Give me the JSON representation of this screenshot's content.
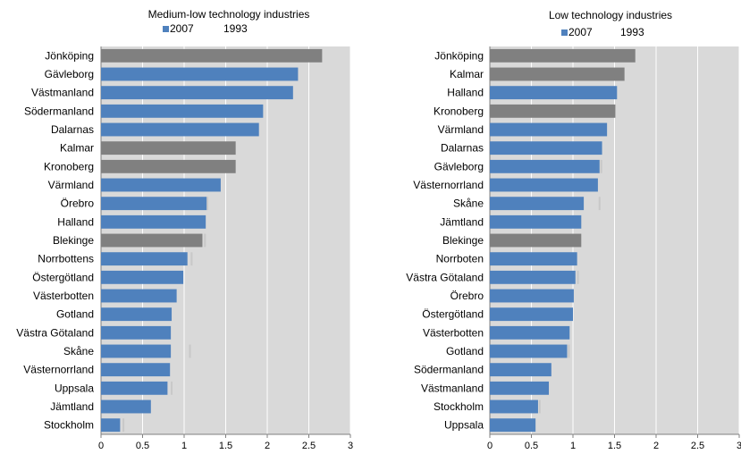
{
  "chart_data": [
    {
      "type": "bar",
      "orientation": "horizontal",
      "title": "Medium-low technology industries",
      "legend": [
        "2007",
        "1993"
      ],
      "legend_position": "top",
      "series_colors": {
        "2007": "#4f81bd",
        "highlight": "#808080",
        "1993": "#c8c8c8"
      },
      "categories": [
        "Jönköping",
        "Gävleborg",
        "Västmanland",
        "Södermanland",
        "Dalarnas",
        "Kalmar",
        "Kronoberg",
        "Värmland",
        "Örebro",
        "Halland",
        "Blekinge",
        "Norrbottens",
        "Östergötland",
        "Västerbotten",
        "Gotland",
        "Västra Götaland",
        "Skåne",
        "Västernorrland",
        "Uppsala",
        "Jämtland",
        "Stockholm"
      ],
      "highlighted": [
        "Jönköping",
        "Kalmar",
        "Kronoberg",
        "Blekinge"
      ],
      "series": [
        {
          "name": "2007",
          "values": [
            2.66,
            2.37,
            2.31,
            1.95,
            1.9,
            1.62,
            1.62,
            1.44,
            1.27,
            1.26,
            1.22,
            1.04,
            0.99,
            0.91,
            0.85,
            0.84,
            0.84,
            0.83,
            0.8,
            0.6,
            0.23
          ]
        },
        {
          "name": "1993",
          "values": [
            null,
            null,
            null,
            null,
            null,
            null,
            null,
            null,
            1.28,
            null,
            1.25,
            1.09,
            null,
            null,
            null,
            null,
            1.07,
            null,
            0.85,
            null,
            0.27
          ]
        }
      ],
      "xlim": [
        0,
        3
      ],
      "xticks": [
        "0",
        "0.5",
        "1",
        "1.5",
        "2",
        "2.5",
        "3"
      ],
      "grid": true
    },
    {
      "type": "bar",
      "orientation": "horizontal",
      "title": "Low technology industries",
      "legend": [
        "2007",
        "1993"
      ],
      "legend_position": "top",
      "series_colors": {
        "2007": "#4f81bd",
        "highlight": "#808080",
        "1993": "#c8c8c8"
      },
      "categories": [
        "Jönköping",
        "Kalmar",
        "Halland",
        "Kronoberg",
        "Värmland",
        "Dalarnas",
        "Gävleborg",
        "Västernorrland",
        "Skåne",
        "Jämtland",
        "Blekinge",
        "Norrboten",
        "Västra Götaland",
        "Örebro",
        "Östergötland",
        "Västerbotten",
        "Gotland",
        "Södermanland",
        "Västmanland",
        "Stockholm",
        "Uppsala"
      ],
      "highlighted": [
        "Jönköping",
        "Kalmar",
        "Kronoberg",
        "Blekinge"
      ],
      "series": [
        {
          "name": "2007",
          "values": [
            1.75,
            1.62,
            1.53,
            1.51,
            1.41,
            1.35,
            1.32,
            1.3,
            1.13,
            1.1,
            1.1,
            1.05,
            1.03,
            1.01,
            1.0,
            0.96,
            0.93,
            0.74,
            0.71,
            0.58,
            0.55
          ]
        },
        {
          "name": "1993",
          "values": [
            null,
            null,
            null,
            null,
            null,
            null,
            1.34,
            null,
            1.32,
            null,
            null,
            null,
            1.06,
            null,
            null,
            null,
            0.95,
            null,
            null,
            0.6,
            null
          ]
        }
      ],
      "xlim": [
        0,
        3
      ],
      "xticks": [
        "0",
        "0.5",
        "1",
        "1.5",
        "2",
        "2.5",
        "3"
      ],
      "grid": true
    }
  ]
}
